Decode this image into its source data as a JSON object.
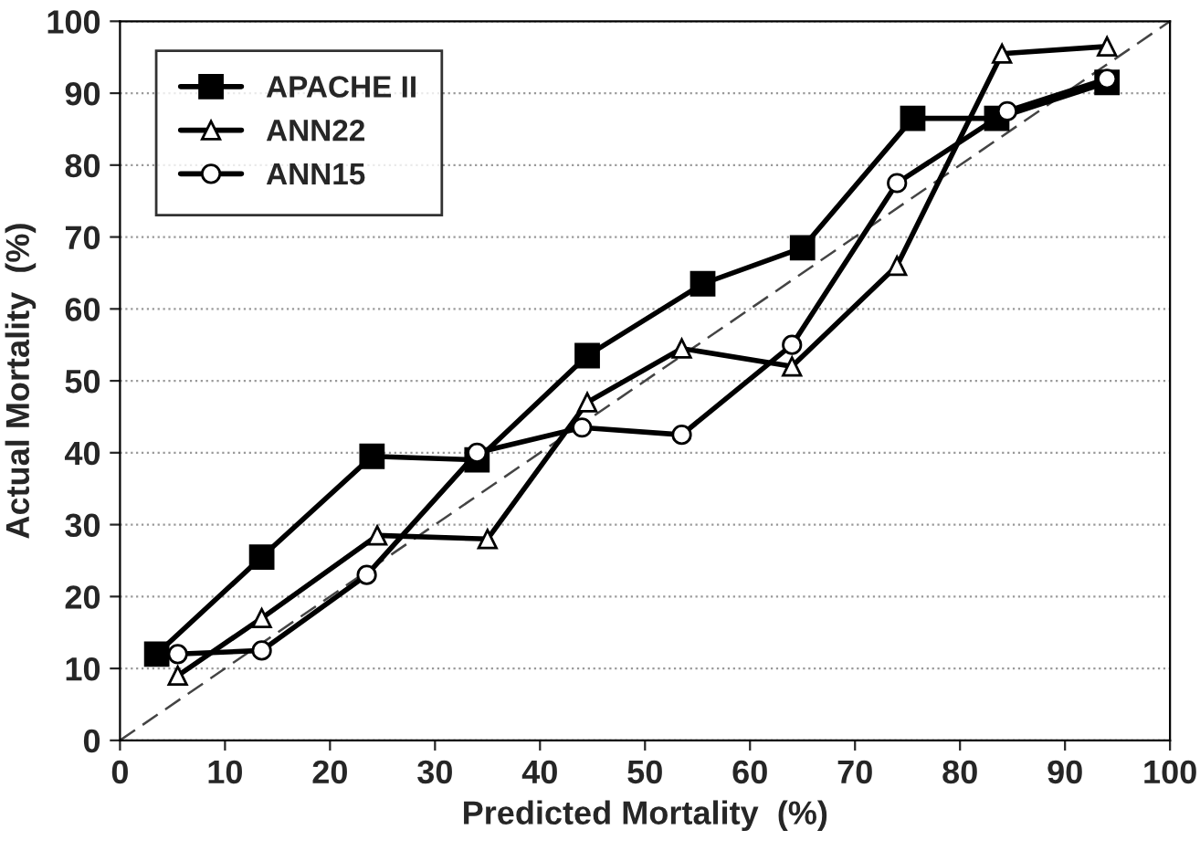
{
  "chart_data": {
    "type": "line",
    "xlabel": "Predicted Mortality  (%)",
    "ylabel": "Actual Mortality  (%)",
    "xlim": [
      0,
      100
    ],
    "ylim": [
      0,
      100
    ],
    "xticks": [
      0,
      10,
      20,
      30,
      40,
      50,
      60,
      70,
      80,
      90,
      100
    ],
    "yticks": [
      0,
      10,
      20,
      30,
      40,
      50,
      60,
      70,
      80,
      90,
      100
    ],
    "grid": "y",
    "legend": "top left",
    "line_style": "solid",
    "series": [
      {
        "name": "APACHE II",
        "color": "#000000",
        "marker": "square",
        "x": [
          3.5,
          13.5,
          24,
          34,
          44.5,
          55.5,
          65,
          75.5,
          83.5,
          94
        ],
        "values": [
          12,
          25.5,
          39.5,
          39,
          53.5,
          63.5,
          68.5,
          86.5,
          86.5,
          91.5
        ]
      },
      {
        "name": "ANN22",
        "color": "#000000",
        "marker": "triangle",
        "x": [
          5.5,
          13.5,
          24.5,
          35,
          44.5,
          53.5,
          64,
          74,
          84,
          94
        ],
        "values": [
          9,
          17,
          28.5,
          28,
          47,
          54.5,
          52,
          66,
          95.5,
          96.5
        ]
      },
      {
        "name": "ANN15",
        "color": "#000000",
        "marker": "circle",
        "x": [
          5.5,
          13.5,
          23.5,
          34,
          44,
          53.5,
          64,
          74,
          84.5,
          94
        ],
        "values": [
          12,
          12.5,
          23,
          40,
          43.5,
          42.5,
          55,
          77.5,
          87.5,
          92
        ]
      },
      {
        "color": "#444444",
        "marker": "none",
        "line_style": "dashed",
        "x": [
          0,
          100
        ],
        "values": [
          0,
          100
        ]
      }
    ]
  }
}
